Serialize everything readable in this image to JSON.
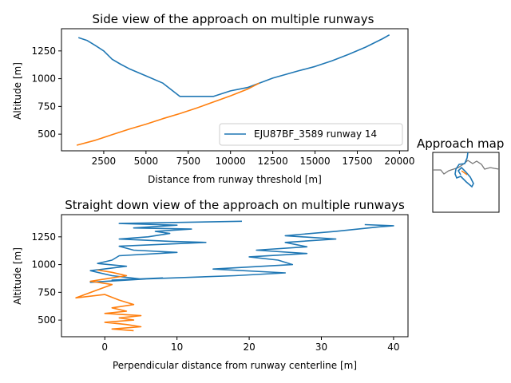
{
  "chart_data": [
    {
      "type": "line",
      "title": "Side view of the approach on multiple runways",
      "xlabel": "Distance from runway threshold [m]",
      "ylabel": "Altitude [m]",
      "xlim": [
        0,
        20500
      ],
      "ylim": [
        350,
        1450
      ],
      "xticks": [
        2500,
        5000,
        7500,
        10000,
        12500,
        15000,
        17500,
        20000
      ],
      "xtick_labels": [
        "2500",
        "5000",
        "7500",
        "10000",
        "12500",
        "15000",
        "17500",
        "20000"
      ],
      "yticks": [
        500,
        750,
        1000,
        1250
      ],
      "ytick_labels": [
        "500",
        "750",
        "1000",
        "1250"
      ],
      "legend": {
        "position": "lower-right",
        "entries": [
          "EJU87BF_3589 runway 14"
        ]
      },
      "grid": false,
      "series": [
        {
          "name": "EJU87BF_3589 runway 14",
          "color": "#1f77b4",
          "x": [
            1000,
            1500,
            2000,
            2500,
            3000,
            3500,
            4000,
            5000,
            6000,
            7000,
            9000,
            10000,
            11000,
            11700,
            12500,
            14000,
            15000,
            16000,
            17000,
            18000,
            19000,
            19400
          ],
          "y": [
            1370,
            1345,
            1300,
            1250,
            1175,
            1130,
            1090,
            1025,
            960,
            840,
            840,
            890,
            920,
            960,
            1005,
            1070,
            1110,
            1160,
            1220,
            1285,
            1360,
            1395
          ]
        },
        {
          "color": "#ff7f0e",
          "x": [
            900,
            2000,
            3000,
            4000,
            5000,
            6000,
            7000,
            8000,
            9000,
            10000,
            11000,
            11700
          ],
          "y": [
            400,
            445,
            495,
            545,
            590,
            640,
            685,
            735,
            790,
            845,
            905,
            960
          ]
        }
      ]
    },
    {
      "type": "line",
      "title": "Straight down view of the approach on multiple runways",
      "xlabel": "Perpendicular distance from runway centerline [m]",
      "ylabel": "Altitude [m]",
      "xlim": [
        -6,
        42
      ],
      "ylim": [
        350,
        1450
      ],
      "xticks": [
        0,
        10,
        20,
        30,
        40
      ],
      "xtick_labels": [
        "0",
        "10",
        "20",
        "30",
        "40"
      ],
      "yticks": [
        500,
        750,
        1000,
        1250
      ],
      "ytick_labels": [
        "500",
        "750",
        "1000",
        "1250"
      ],
      "grid": false,
      "series": [
        {
          "color": "#1f77b4",
          "x": [
            19,
            2,
            10,
            4,
            12,
            7,
            9,
            6,
            2,
            9,
            14,
            2,
            4,
            10,
            2,
            1,
            -1,
            3,
            -2,
            1,
            5,
            -2,
            3,
            8,
            1,
            18,
            25,
            15,
            26,
            24,
            20,
            28,
            21,
            28,
            25,
            32,
            25,
            32,
            38,
            40,
            36
          ],
          "y": [
            1390,
            1370,
            1355,
            1330,
            1320,
            1300,
            1280,
            1250,
            1230,
            1210,
            1200,
            1165,
            1130,
            1110,
            1080,
            1040,
            1010,
            985,
            945,
            900,
            870,
            840,
            860,
            880,
            860,
            900,
            925,
            960,
            1000,
            1040,
            1070,
            1100,
            1130,
            1160,
            1200,
            1230,
            1260,
            1300,
            1340,
            1350,
            1360
          ]
        },
        {
          "color": "#ff7f0e",
          "x": [
            -1,
            1,
            3,
            0,
            -2,
            1,
            -4,
            0,
            2,
            4,
            1,
            3,
            0,
            5,
            2,
            4,
            0,
            3,
            5,
            1,
            4
          ],
          "y": [
            950,
            930,
            900,
            870,
            850,
            820,
            700,
            730,
            680,
            640,
            610,
            580,
            560,
            540,
            520,
            500,
            480,
            460,
            440,
            420,
            405
          ]
        }
      ]
    }
  ],
  "inset": {
    "title": "Approach map"
  }
}
